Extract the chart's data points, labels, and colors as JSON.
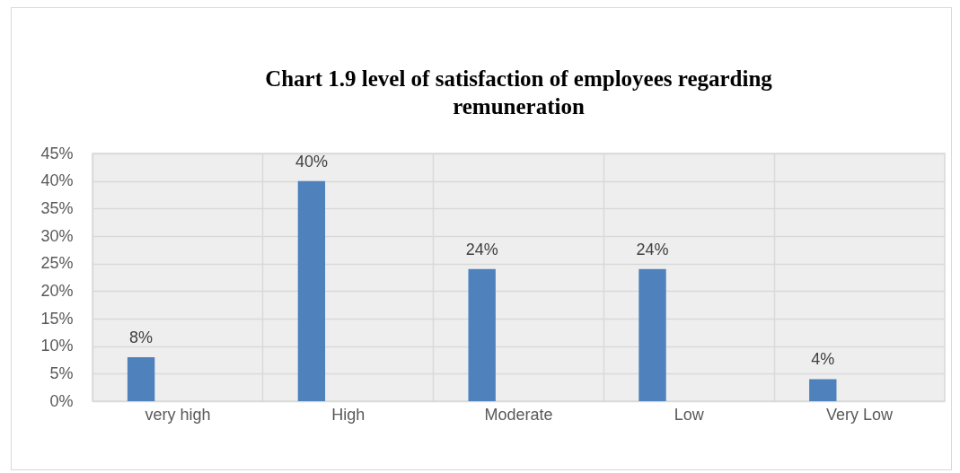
{
  "chart_data": {
    "type": "bar",
    "title": "Chart 1.9 level of satisfaction of employees regarding remuneration",
    "categories": [
      "very high",
      "High",
      "Moderate",
      "Low",
      "Very Low"
    ],
    "values": [
      8,
      40,
      24,
      24,
      4
    ],
    "color": "#4f81bd",
    "value_labels": [
      "8%",
      "40%",
      "24%",
      "24%",
      "4%"
    ],
    "ylim": [
      0,
      45
    ],
    "yticks": [
      {
        "value": 0,
        "label": "0%"
      },
      {
        "value": 5,
        "label": "5%"
      },
      {
        "value": 10,
        "label": "10%"
      },
      {
        "value": 15,
        "label": "15%"
      },
      {
        "value": 20,
        "label": "20%"
      },
      {
        "value": 25,
        "label": "25%"
      },
      {
        "value": 30,
        "label": "30%"
      },
      {
        "value": 35,
        "label": "35%"
      },
      {
        "value": 40,
        "label": "40%"
      },
      {
        "value": 45,
        "label": "45%"
      }
    ],
    "grid": true
  }
}
